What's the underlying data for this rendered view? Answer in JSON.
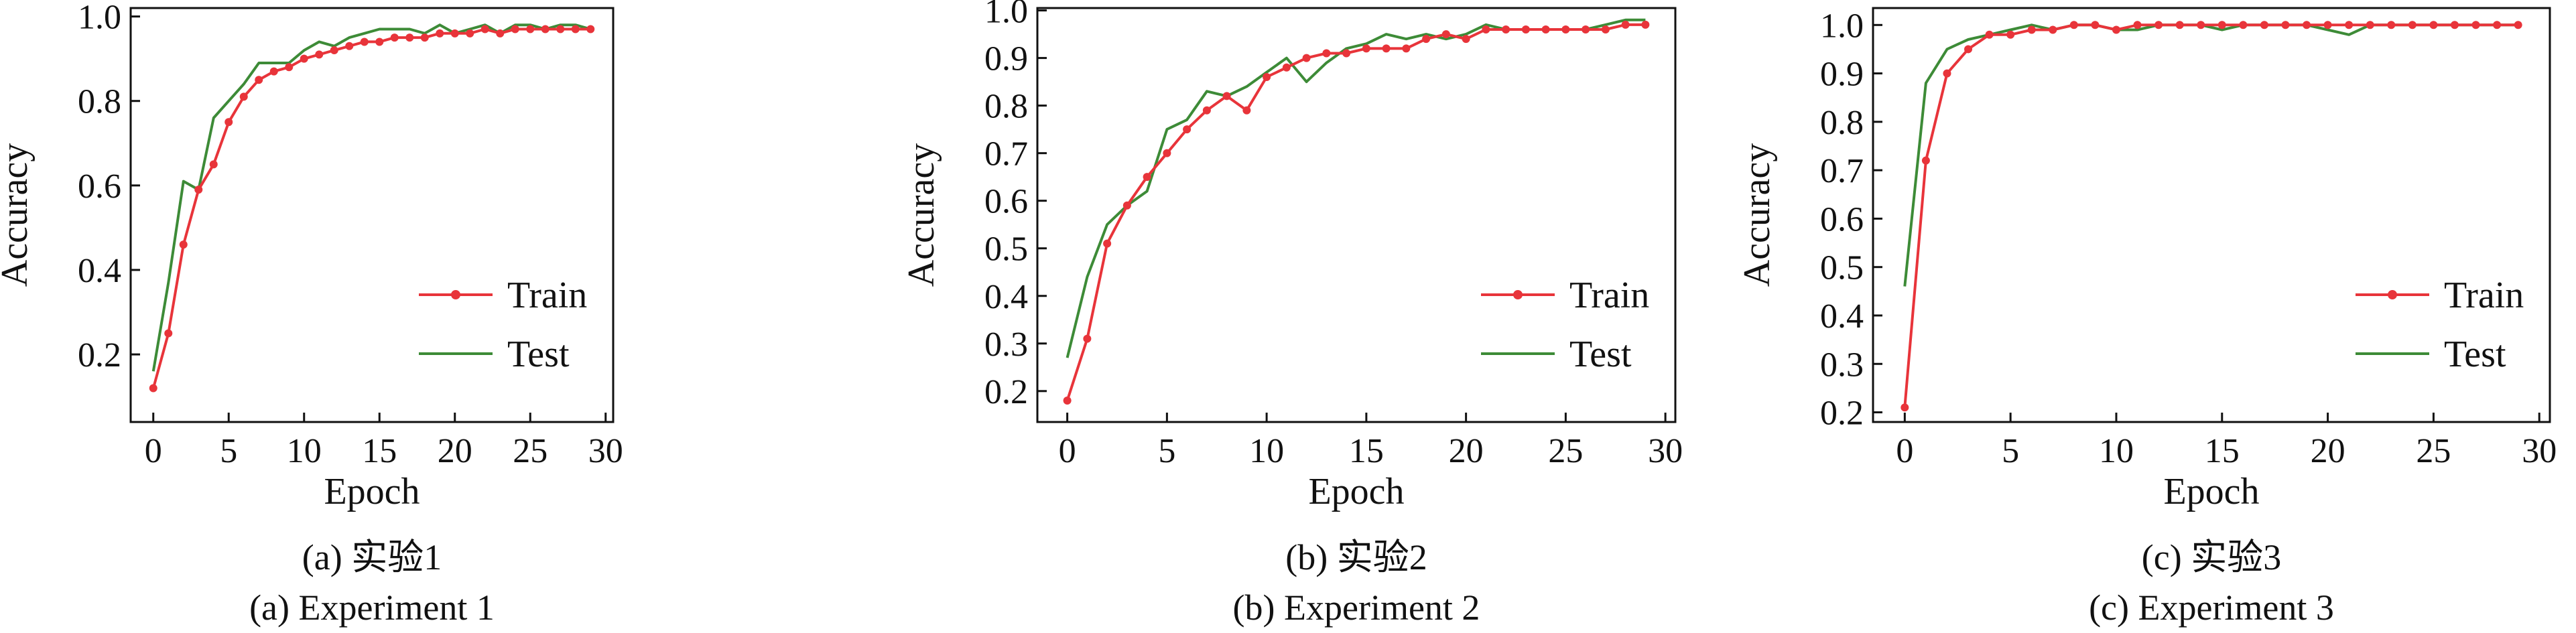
{
  "chart_data": [
    {
      "type": "line",
      "caption_cn": "(a)  实验1",
      "caption_en": "(a)  Experiment 1",
      "xlabel": "Epoch",
      "ylabel": "Accuracy",
      "xlim": [
        -1.5,
        30.5
      ],
      "ylim": [
        0.04,
        1.02
      ],
      "xticks": [
        0,
        5,
        10,
        15,
        20,
        25,
        30
      ],
      "yticks": [
        0.2,
        0.4,
        0.6,
        0.8,
        1.0
      ],
      "ytick_labels": [
        "0.2",
        "0.4",
        "0.6",
        "0.8",
        "1.0"
      ],
      "legend_position": "lower-right",
      "x": [
        0,
        1,
        2,
        3,
        4,
        5,
        6,
        7,
        8,
        9,
        10,
        11,
        12,
        13,
        14,
        15,
        16,
        17,
        18,
        19,
        20,
        21,
        22,
        23,
        24,
        25,
        26,
        27,
        28,
        29
      ],
      "series": [
        {
          "name": "Train",
          "color": "#e8343a",
          "marker": true,
          "values": [
            0.12,
            0.25,
            0.46,
            0.59,
            0.65,
            0.75,
            0.81,
            0.85,
            0.87,
            0.88,
            0.9,
            0.91,
            0.92,
            0.93,
            0.94,
            0.94,
            0.95,
            0.95,
            0.95,
            0.96,
            0.96,
            0.96,
            0.97,
            0.96,
            0.97,
            0.97,
            0.97,
            0.97,
            0.97,
            0.97
          ]
        },
        {
          "name": "Test",
          "color": "#3d8b37",
          "marker": false,
          "values": [
            0.16,
            0.37,
            0.61,
            0.59,
            0.76,
            0.8,
            0.84,
            0.89,
            0.89,
            0.89,
            0.92,
            0.94,
            0.93,
            0.95,
            0.96,
            0.97,
            0.97,
            0.97,
            0.96,
            0.98,
            0.96,
            0.97,
            0.98,
            0.96,
            0.98,
            0.98,
            0.97,
            0.98,
            0.98,
            0.97
          ]
        }
      ]
    },
    {
      "type": "line",
      "caption_cn": "(b)  实验2",
      "caption_en": "(b)  Experiment 2",
      "xlabel": "Epoch",
      "ylabel": "Accuracy",
      "xlim": [
        -1.5,
        30.5
      ],
      "ylim": [
        0.135,
        1.005
      ],
      "xticks": [
        0,
        5,
        10,
        15,
        20,
        25,
        30
      ],
      "yticks": [
        0.2,
        0.3,
        0.4,
        0.5,
        0.6,
        0.7,
        0.8,
        0.9,
        1.0
      ],
      "ytick_labels": [
        "0.2",
        "0.3",
        "0.4",
        "0.5",
        "0.6",
        "0.7",
        "0.8",
        "0.9",
        "1.0"
      ],
      "legend_position": "lower-right",
      "x": [
        0,
        1,
        2,
        3,
        4,
        5,
        6,
        7,
        8,
        9,
        10,
        11,
        12,
        13,
        14,
        15,
        16,
        17,
        18,
        19,
        20,
        21,
        22,
        23,
        24,
        25,
        26,
        27,
        28,
        29
      ],
      "series": [
        {
          "name": "Train",
          "color": "#e8343a",
          "marker": true,
          "values": [
            0.18,
            0.31,
            0.51,
            0.59,
            0.65,
            0.7,
            0.75,
            0.79,
            0.82,
            0.79,
            0.86,
            0.88,
            0.9,
            0.91,
            0.91,
            0.92,
            0.92,
            0.92,
            0.94,
            0.95,
            0.94,
            0.96,
            0.96,
            0.96,
            0.96,
            0.96,
            0.96,
            0.96,
            0.97,
            0.97
          ]
        },
        {
          "name": "Test",
          "color": "#3d8b37",
          "marker": false,
          "values": [
            0.27,
            0.44,
            0.55,
            0.59,
            0.62,
            0.75,
            0.77,
            0.83,
            0.82,
            0.84,
            0.87,
            0.9,
            0.85,
            0.89,
            0.92,
            0.93,
            0.95,
            0.94,
            0.95,
            0.94,
            0.95,
            0.97,
            0.96,
            0.96,
            0.96,
            0.96,
            0.96,
            0.97,
            0.98,
            0.98
          ]
        }
      ]
    },
    {
      "type": "line",
      "caption_cn": "(c)  实验3",
      "caption_en": "(c)  Experiment 3",
      "xlabel": "Epoch",
      "ylabel": "Accuracy",
      "xlim": [
        -1.5,
        30.5
      ],
      "ylim": [
        0.18,
        1.035
      ],
      "xticks": [
        0,
        5,
        10,
        15,
        20,
        25,
        30
      ],
      "yticks": [
        0.2,
        0.3,
        0.4,
        0.5,
        0.6,
        0.7,
        0.8,
        0.9,
        1.0
      ],
      "ytick_labels": [
        "0.2",
        "0.3",
        "0.4",
        "0.5",
        "0.6",
        "0.7",
        "0.8",
        "0.9",
        "1.0"
      ],
      "legend_position": "lower-right",
      "x": [
        0,
        1,
        2,
        3,
        4,
        5,
        6,
        7,
        8,
        9,
        10,
        11,
        12,
        13,
        14,
        15,
        16,
        17,
        18,
        19,
        20,
        21,
        22,
        23,
        24,
        25,
        26,
        27,
        28,
        29
      ],
      "series": [
        {
          "name": "Train",
          "color": "#e8343a",
          "marker": true,
          "values": [
            0.21,
            0.72,
            0.9,
            0.95,
            0.98,
            0.98,
            0.99,
            0.99,
            1.0,
            1.0,
            0.99,
            1.0,
            1.0,
            1.0,
            1.0,
            1.0,
            1.0,
            1.0,
            1.0,
            1.0,
            1.0,
            1.0,
            1.0,
            1.0,
            1.0,
            1.0,
            1.0,
            1.0,
            1.0,
            1.0
          ]
        },
        {
          "name": "Test",
          "color": "#3d8b37",
          "marker": false,
          "values": [
            0.46,
            0.88,
            0.95,
            0.97,
            0.98,
            0.99,
            1.0,
            0.99,
            1.0,
            1.0,
            0.99,
            0.99,
            1.0,
            1.0,
            1.0,
            0.99,
            1.0,
            1.0,
            1.0,
            1.0,
            0.99,
            0.98,
            1.0,
            1.0,
            1.0,
            1.0,
            1.0,
            1.0,
            1.0,
            1.0
          ]
        }
      ]
    }
  ]
}
